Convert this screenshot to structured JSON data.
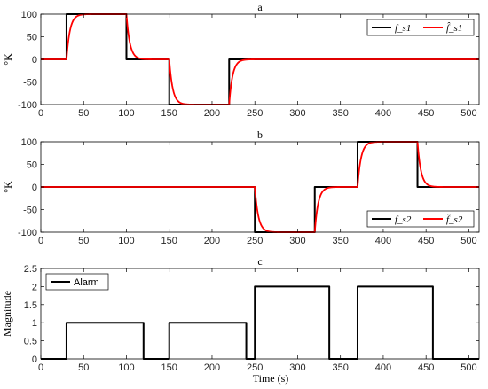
{
  "figure": {
    "xlabel": "Time (s)"
  },
  "chart_data": [
    {
      "panel": "a",
      "type": "line",
      "title": "a",
      "ylabel": "°K",
      "xlim": [
        0,
        512
      ],
      "ylim": [
        -100,
        100
      ],
      "xticks": [
        0,
        50,
        100,
        150,
        200,
        250,
        300,
        350,
        400,
        450,
        500
      ],
      "yticks": [
        -100,
        -50,
        0,
        50,
        100
      ],
      "legend_position": "top-right",
      "series": [
        {
          "name": "f_s1",
          "color": "#000000",
          "style": "step",
          "points": [
            [
              0,
              0
            ],
            [
              30,
              0
            ],
            [
              30,
              100
            ],
            [
              100,
              100
            ],
            [
              100,
              0
            ],
            [
              150,
              0
            ],
            [
              150,
              -100
            ],
            [
              220,
              -100
            ],
            [
              220,
              0
            ],
            [
              512,
              0
            ]
          ]
        },
        {
          "name": "f̂_s1",
          "color": "#ff0000",
          "style": "response",
          "tau": 4,
          "steps": [
            [
              0,
              0
            ],
            [
              30,
              100
            ],
            [
              100,
              0
            ],
            [
              150,
              -100
            ],
            [
              220,
              0
            ]
          ],
          "x_end": 512
        }
      ]
    },
    {
      "panel": "b",
      "type": "line",
      "title": "b",
      "ylabel": "°K",
      "xlim": [
        0,
        512
      ],
      "ylim": [
        -100,
        100
      ],
      "xticks": [
        0,
        50,
        100,
        150,
        200,
        250,
        300,
        350,
        400,
        450,
        500
      ],
      "yticks": [
        -100,
        -50,
        0,
        50,
        100
      ],
      "legend_position": "bottom-right",
      "series": [
        {
          "name": "f_s2",
          "color": "#000000",
          "style": "step",
          "points": [
            [
              0,
              0
            ],
            [
              250,
              0
            ],
            [
              250,
              -100
            ],
            [
              320,
              -100
            ],
            [
              320,
              0
            ],
            [
              370,
              0
            ],
            [
              370,
              100
            ],
            [
              440,
              100
            ],
            [
              440,
              0
            ],
            [
              512,
              0
            ]
          ]
        },
        {
          "name": "f̂_s2",
          "color": "#ff0000",
          "style": "response",
          "tau": 4,
          "steps": [
            [
              0,
              0
            ],
            [
              250,
              -100
            ],
            [
              320,
              0
            ],
            [
              370,
              100
            ],
            [
              440,
              0
            ]
          ],
          "x_end": 512
        }
      ]
    },
    {
      "panel": "c",
      "type": "line",
      "title": "c",
      "ylabel": "Magnitude",
      "xlabel": "Time (s)",
      "xlim": [
        0,
        512
      ],
      "ylim": [
        0,
        2.5
      ],
      "xticks": [
        0,
        50,
        100,
        150,
        200,
        250,
        300,
        350,
        400,
        450,
        500
      ],
      "yticks": [
        0,
        0.5,
        1,
        1.5,
        2,
        2.5
      ],
      "legend_position": "top-left",
      "series": [
        {
          "name": "Alarm",
          "color": "#000000",
          "style": "step",
          "points": [
            [
              0,
              0
            ],
            [
              30,
              0
            ],
            [
              30,
              1
            ],
            [
              120,
              1
            ],
            [
              120,
              0
            ],
            [
              150,
              0
            ],
            [
              150,
              1
            ],
            [
              240,
              1
            ],
            [
              240,
              0
            ],
            [
              250,
              0
            ],
            [
              250,
              2
            ],
            [
              337,
              2
            ],
            [
              337,
              0
            ],
            [
              370,
              0
            ],
            [
              370,
              2
            ],
            [
              458,
              2
            ],
            [
              458,
              0
            ],
            [
              512,
              0
            ]
          ]
        }
      ]
    }
  ]
}
